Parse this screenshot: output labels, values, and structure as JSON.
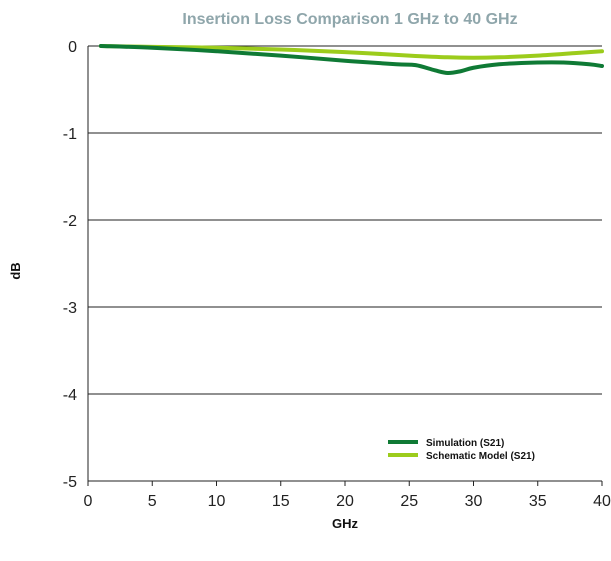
{
  "chart_data": {
    "type": "line",
    "title": "Insertion Loss Comparison 1 GHz to 40 GHz",
    "xlabel": "GHz",
    "ylabel": "dB",
    "xlim": [
      0,
      40
    ],
    "ylim": [
      -5,
      0
    ],
    "xticks": [
      0,
      5,
      10,
      15,
      20,
      25,
      30,
      35,
      40
    ],
    "yticks": [
      0,
      -1,
      -2,
      -3,
      -4,
      -5
    ],
    "grid": "horizontal",
    "legend_position": "bottom-right",
    "series": [
      {
        "name": "Simulation (S21)",
        "color": "#0f7a35",
        "x": [
          1,
          5,
          10,
          15,
          20,
          24,
          25.5,
          27,
          28,
          29,
          30,
          32,
          35,
          37,
          39,
          40
        ],
        "y": [
          0,
          -0.02,
          -0.06,
          -0.11,
          -0.17,
          -0.21,
          -0.22,
          -0.28,
          -0.31,
          -0.29,
          -0.25,
          -0.21,
          -0.19,
          -0.19,
          -0.21,
          -0.23
        ]
      },
      {
        "name": "Schematic Model (S21)",
        "color": "#9ccc1c",
        "x": [
          1,
          5,
          10,
          15,
          20,
          25,
          28,
          30,
          32,
          35,
          38,
          40
        ],
        "y": [
          0,
          -0.01,
          -0.02,
          -0.04,
          -0.07,
          -0.11,
          -0.13,
          -0.135,
          -0.13,
          -0.11,
          -0.08,
          -0.06
        ]
      }
    ]
  }
}
